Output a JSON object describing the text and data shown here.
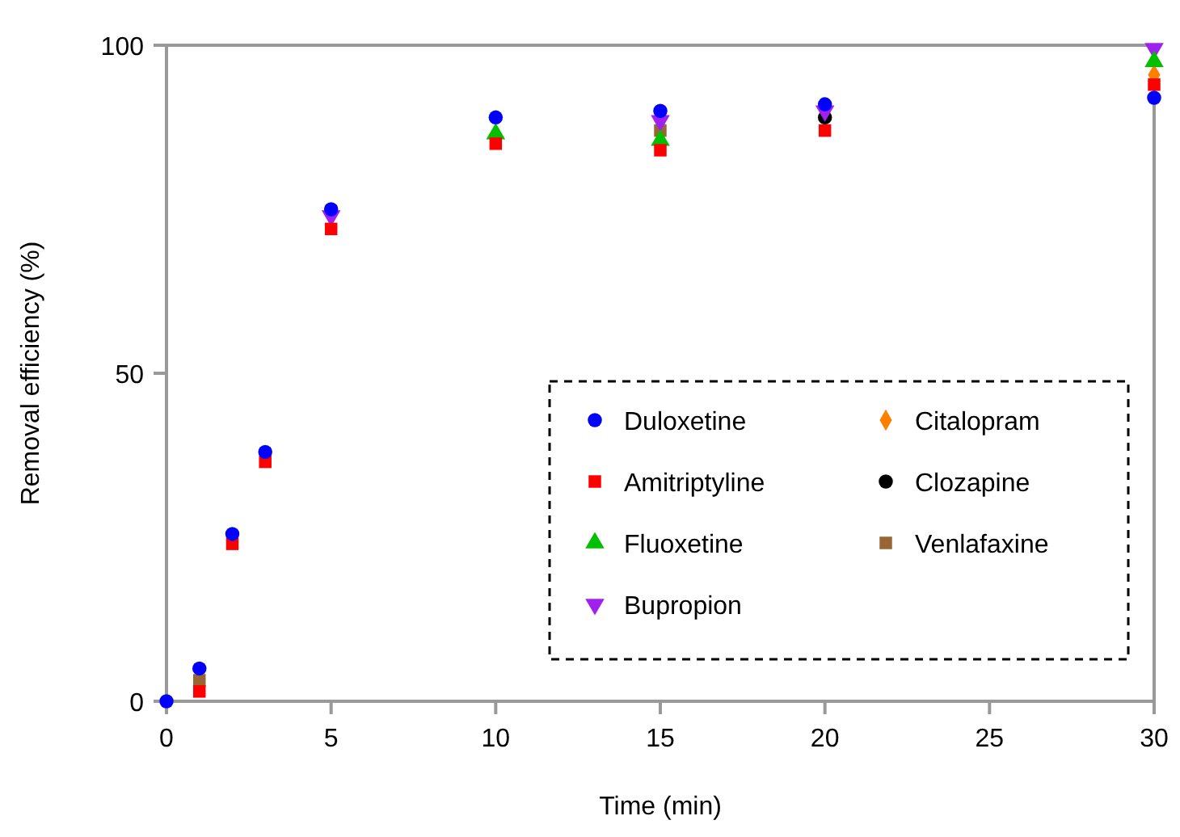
{
  "chart_data": {
    "type": "scatter",
    "xlabel": "Time (min)",
    "ylabel": "Removal efficiency (%)",
    "x": [
      0,
      1,
      2,
      3,
      5,
      10,
      15,
      20,
      30
    ],
    "xlim": [
      0,
      30
    ],
    "ylim": [
      0,
      100
    ],
    "xticks": [
      0,
      5,
      10,
      15,
      20,
      25,
      30
    ],
    "yticks": [
      0,
      50,
      100
    ],
    "grid": false,
    "legend": "bottom right",
    "series": [
      {
        "name": "Duloxetine",
        "color": "#0000ff",
        "marker": "circle",
        "values": [
          0,
          5,
          25.5,
          38,
          75,
          89,
          90,
          91,
          92
        ]
      },
      {
        "name": "Amitriptyline",
        "color": "#ff0000",
        "marker": "square",
        "values": [
          null,
          1.5,
          24,
          36.5,
          72,
          85,
          84,
          87,
          94
        ]
      },
      {
        "name": "Fluoxetine",
        "color": "#00c000",
        "marker": "triangle",
        "values": [
          null,
          null,
          null,
          null,
          null,
          86.5,
          85.5,
          null,
          97.5
        ]
      },
      {
        "name": "Bupropion",
        "color": "#a020f0",
        "marker": "triangle-down",
        "values": [
          null,
          null,
          null,
          null,
          74,
          null,
          88.5,
          90,
          99.5
        ]
      },
      {
        "name": "Citalopram",
        "color": "#ff8000",
        "marker": "diamond",
        "values": [
          null,
          null,
          null,
          null,
          null,
          null,
          null,
          null,
          95.5
        ]
      },
      {
        "name": "Clozapine",
        "color": "#000000",
        "marker": "circle",
        "values": [
          null,
          null,
          null,
          null,
          null,
          null,
          null,
          89,
          null
        ]
      },
      {
        "name": "Venlafaxine",
        "color": "#996633",
        "marker": "square",
        "values": [
          null,
          3.2,
          null,
          null,
          null,
          null,
          87,
          null,
          null
        ]
      }
    ]
  }
}
